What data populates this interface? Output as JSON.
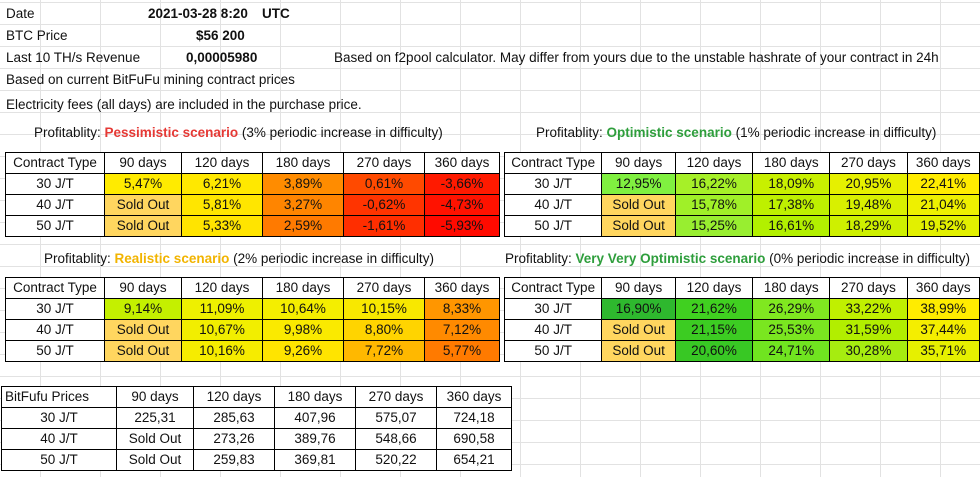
{
  "info": {
    "date_label": "Date",
    "date_value": "2021-03-28 8:20",
    "date_tz": "UTC",
    "btc_label": "BTC Price",
    "btc_value": "$56 200",
    "revenue_label": "Last 10 TH/s Revenue",
    "revenue_value": "0,00005980",
    "revenue_note": "Based on f2pool calculator. May differ from yours due to the unstable hashrate of your contract in 24h",
    "note_prices": "Based on current BitFuFu mining contract prices",
    "note_fees": "Electricity fees (all days) are included in the purchase price."
  },
  "headers": [
    "Contract Type",
    "90 days",
    "120 days",
    "180 days",
    "270 days",
    "360 days"
  ],
  "rows": [
    "30 J/T",
    "40 J/T",
    "50 J/T"
  ],
  "tables": {
    "pessimistic": {
      "prefix": "Profitablity: ",
      "scenario": "Pessimistic scenario",
      "suffix": " (3% periodic increase in difficulty)",
      "values": [
        [
          "5,47%",
          "6,21%",
          "3,89%",
          "0,61%",
          "-3,66%"
        ],
        [
          "Sold Out",
          "5,81%",
          "3,27%",
          "-0,62%",
          "-4,73%"
        ],
        [
          "Sold Out",
          "5,33%",
          "2,59%",
          "-1,61%",
          "-5,93%"
        ]
      ],
      "colors": [
        [
          "#ffeb00",
          "#ffe800",
          "#ff8c00",
          "#ff4a00",
          "#ff1a00"
        ],
        [
          "#ffd65f",
          "#ffe600",
          "#ff8500",
          "#ff3400",
          "#ff1200"
        ],
        [
          "#ffd65f",
          "#ffe400",
          "#ff7a00",
          "#ff2e00",
          "#ff0a00"
        ]
      ]
    },
    "optimistic": {
      "prefix": "Profitablity: ",
      "scenario": "Optimistic scenario",
      "suffix": " (1% periodic increase in difficulty)",
      "values": [
        [
          "12,95%",
          "16,22%",
          "18,09%",
          "20,95%",
          "22,41%"
        ],
        [
          "Sold Out",
          "15,78%",
          "17,38%",
          "19,48%",
          "21,04%"
        ],
        [
          "Sold Out",
          "15,25%",
          "16,61%",
          "18,29%",
          "19,52%"
        ]
      ],
      "colors": [
        [
          "#80f040",
          "#a6f028",
          "#c8f000",
          "#e6f000",
          "#ffec00"
        ],
        [
          "#ffd65f",
          "#a0f028",
          "#bef000",
          "#d8f000",
          "#eef000"
        ],
        [
          "#ffd65f",
          "#98ee30",
          "#b2f000",
          "#cef000",
          "#e2f000"
        ]
      ]
    },
    "realistic": {
      "prefix": "Profitablity: ",
      "scenario": "Realistic scenario",
      "suffix": " (2% periodic increase in difficulty)",
      "values": [
        [
          "9,14%",
          "11,09%",
          "10,64%",
          "10,15%",
          "8,33%"
        ],
        [
          "Sold Out",
          "10,67%",
          "9,98%",
          "8,80%",
          "7,12%"
        ],
        [
          "Sold Out",
          "10,16%",
          "9,26%",
          "7,72%",
          "5,77%"
        ]
      ],
      "colors": [
        [
          "#c4f000",
          "#eef000",
          "#f4ee00",
          "#f8e800",
          "#ff9600"
        ],
        [
          "#ffd65f",
          "#f2ee00",
          "#faea00",
          "#ffd400",
          "#ff8a00"
        ],
        [
          "#ffd65f",
          "#f6ec00",
          "#ffe400",
          "#ffb800",
          "#ff7a00"
        ]
      ]
    },
    "very_optimistic": {
      "prefix": "Profitablity: ",
      "scenario": "Very Very Optimistic scenario",
      "suffix": " (0% periodic increase in difficulty)",
      "values": [
        [
          "16,90%",
          "21,62%",
          "26,29%",
          "33,22%",
          "38,99%"
        ],
        [
          "Sold Out",
          "21,15%",
          "25,53%",
          "31,59%",
          "37,44%"
        ],
        [
          "Sold Out",
          "20,60%",
          "24,71%",
          "30,28%",
          "35,71%"
        ]
      ],
      "colors": [
        [
          "#2eb82e",
          "#40d020",
          "#80e820",
          "#c0f000",
          "#ffec00"
        ],
        [
          "#ffd65f",
          "#3ccc22",
          "#7ae620",
          "#b2ee00",
          "#f4ee00"
        ],
        [
          "#ffd65f",
          "#38c824",
          "#70e420",
          "#a6ec10",
          "#e6f000"
        ]
      ]
    }
  },
  "prices": {
    "header": "BitFufu Prices",
    "values": [
      [
        "225,31",
        "285,63",
        "407,96",
        "575,07",
        "724,18"
      ],
      [
        "Sold Out",
        "273,26",
        "389,76",
        "548,66",
        "690,58"
      ],
      [
        "Sold Out",
        "259,83",
        "369,81",
        "520,22",
        "654,21"
      ]
    ]
  },
  "colors": {
    "pessimistic_title": "#e53935",
    "optimistic_title": "#2e9e3c",
    "realistic_title": "#f2b400",
    "very_optimistic_title": "#2e9e3c"
  }
}
